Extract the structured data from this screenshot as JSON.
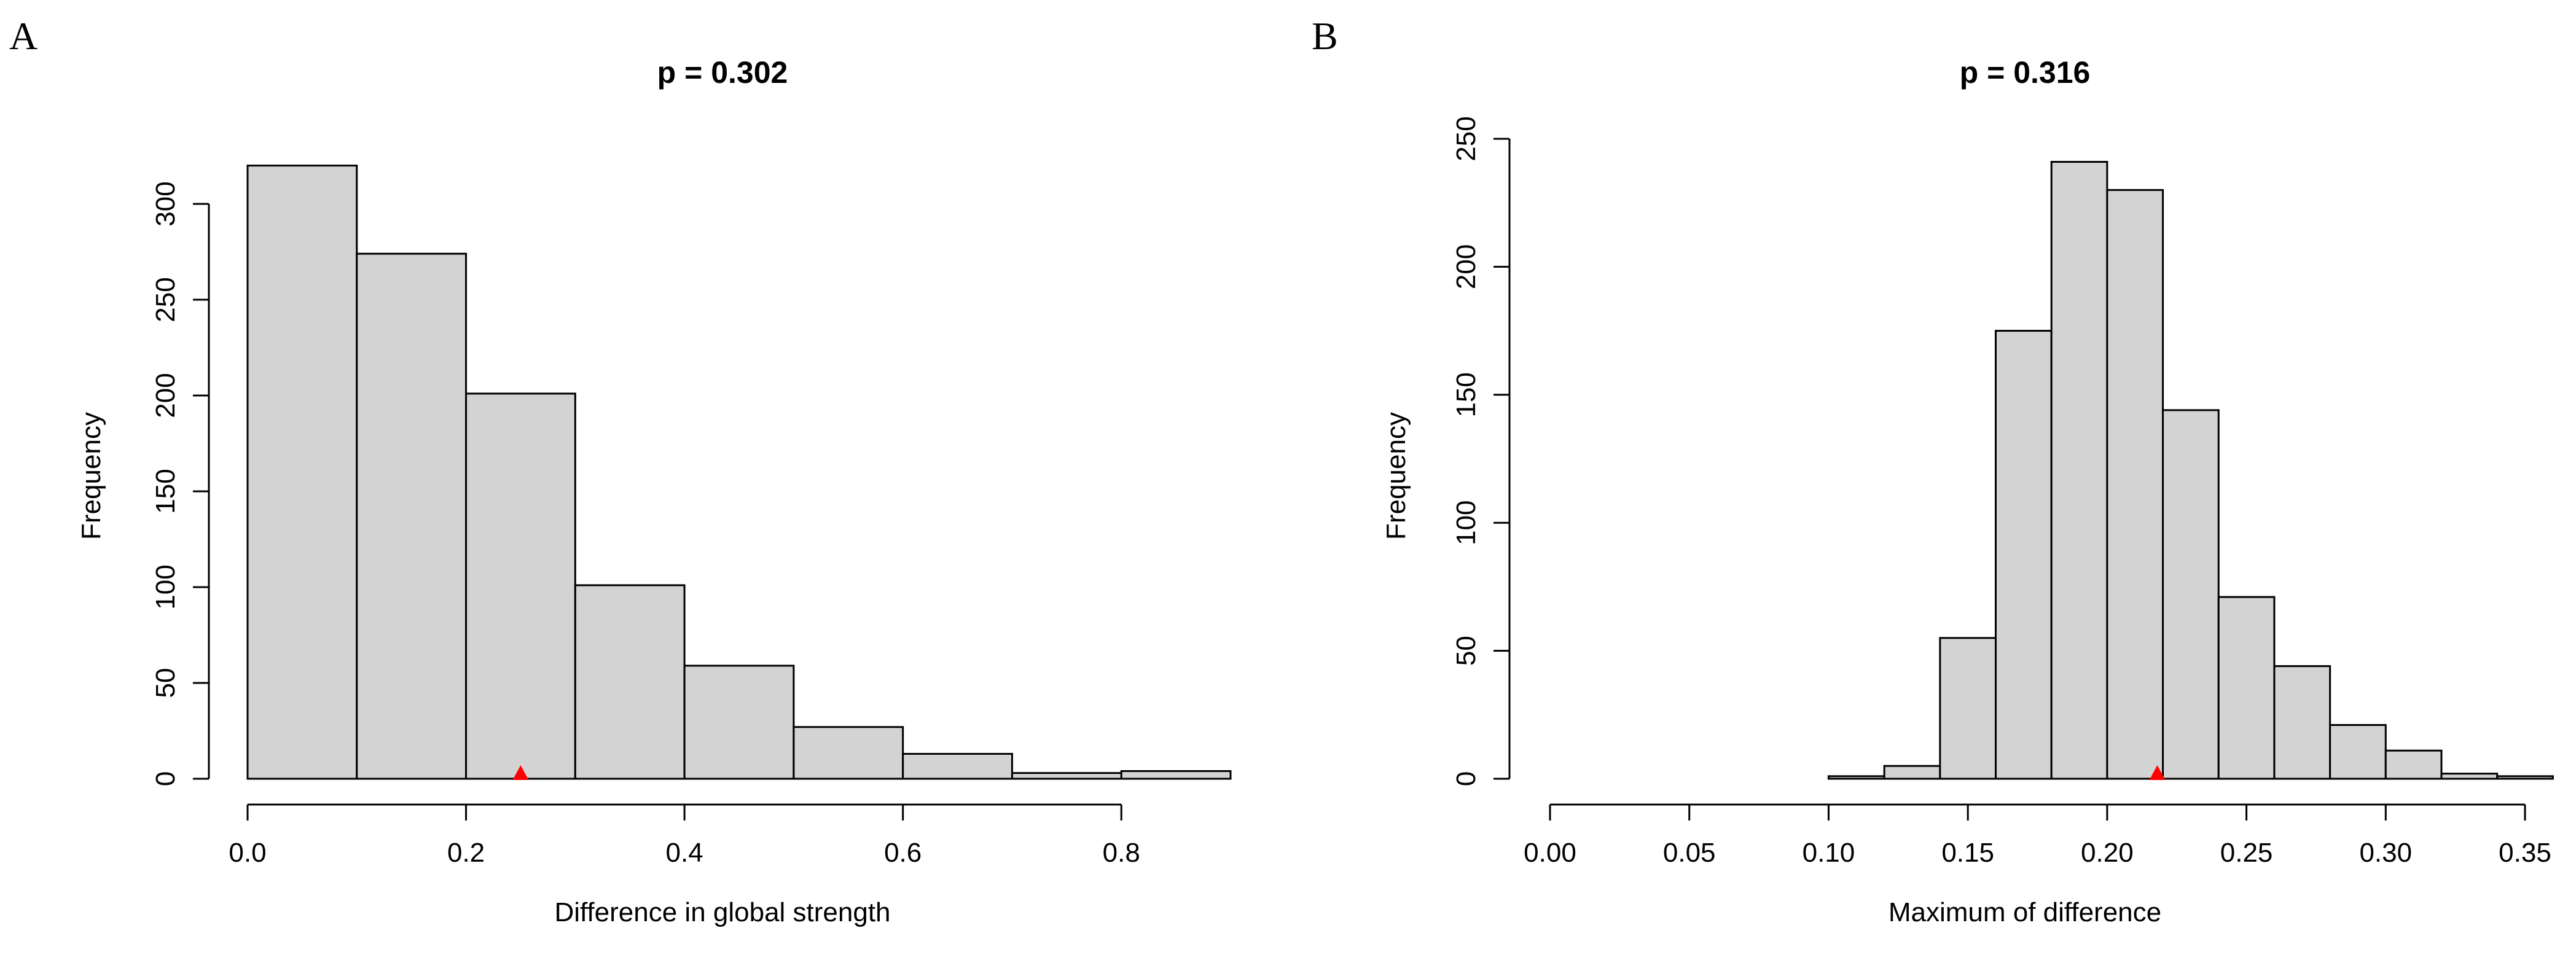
{
  "colors": {
    "bar_fill": "#d3d3d3",
    "bar_stroke": "#000000",
    "marker": "#ff0000"
  },
  "chart_data": [
    {
      "type": "bar",
      "panel": "A",
      "title": "p = 0.302",
      "xlabel": "Difference in global strength",
      "ylabel": "Frequency",
      "bin_edges": [
        0.0,
        0.1,
        0.2,
        0.3,
        0.4,
        0.5,
        0.6,
        0.7,
        0.8,
        0.9
      ],
      "values": [
        320,
        274,
        201,
        101,
        59,
        27,
        13,
        3,
        4
      ],
      "observed_value": 0.25,
      "xlim": [
        0.0,
        0.9
      ],
      "ylim": [
        0,
        320
      ],
      "x_ticks": [
        0.0,
        0.2,
        0.4,
        0.6,
        0.8
      ],
      "x_tick_labels": [
        "0.0",
        "0.2",
        "0.4",
        "0.6",
        "0.8"
      ],
      "y_ticks": [
        0,
        50,
        100,
        150,
        200,
        250,
        300
      ],
      "y_tick_labels": [
        "0",
        "50",
        "100",
        "150",
        "200",
        "250",
        "300"
      ],
      "grid": false
    },
    {
      "type": "bar",
      "panel": "B",
      "title": "p = 0.316",
      "xlabel": "Maximum of difference",
      "ylabel": "Frequency",
      "bin_edges": [
        0.1,
        0.12,
        0.14,
        0.16,
        0.18,
        0.2,
        0.22,
        0.24,
        0.26,
        0.28,
        0.3,
        0.32,
        0.34,
        0.36
      ],
      "values": [
        1,
        5,
        55,
        175,
        241,
        230,
        144,
        71,
        44,
        21,
        11,
        2,
        1
      ],
      "observed_value": 0.218,
      "xlim": [
        0.0,
        0.35
      ],
      "ylim": [
        0,
        250
      ],
      "x_ticks": [
        0.0,
        0.05,
        0.1,
        0.15,
        0.2,
        0.25,
        0.3,
        0.35
      ],
      "x_tick_labels": [
        "0.00",
        "0.05",
        "0.10",
        "0.15",
        "0.20",
        "0.25",
        "0.30",
        "0.35"
      ],
      "y_ticks": [
        0,
        50,
        100,
        150,
        200,
        250
      ],
      "y_tick_labels": [
        "0",
        "50",
        "100",
        "150",
        "200",
        "250"
      ],
      "grid": false
    }
  ]
}
